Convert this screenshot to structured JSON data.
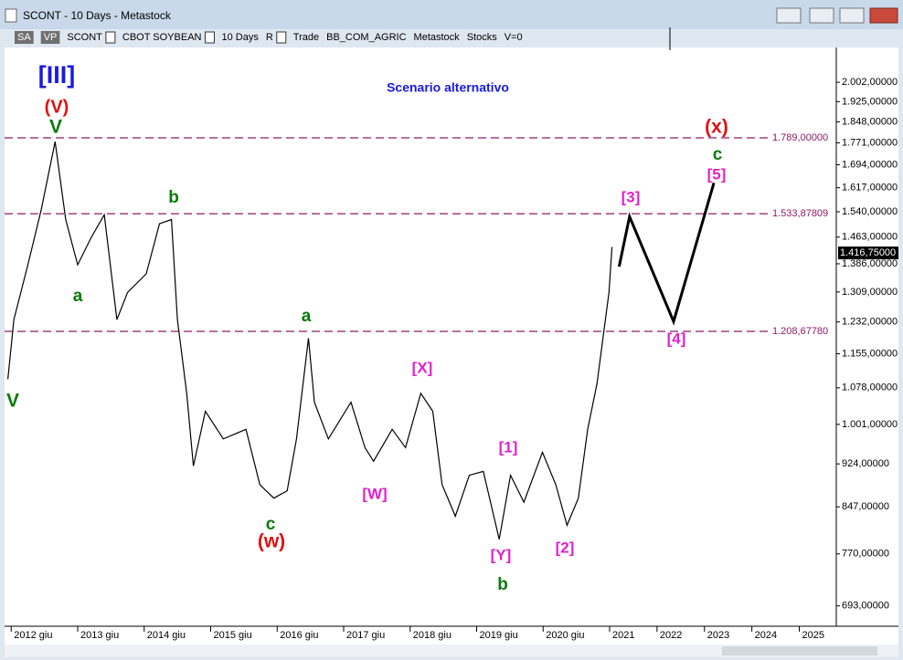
{
  "window": {
    "title": "SCONT - 10 Days - Metastock"
  },
  "toolbar": {
    "items": [
      "SA",
      "VP",
      "SCONT",
      "CBOT SOYBEAN",
      "10 Days",
      "R",
      "Trade",
      "BB_COM_AGRIC",
      "Metastock",
      "Stocks",
      "V=0"
    ]
  },
  "chart_data": {
    "type": "line",
    "log_scale": true,
    "color": "#000000",
    "x": [
      2011.95,
      2012.04,
      2012.25,
      2012.45,
      2012.66,
      2012.82,
      2013.0,
      2013.2,
      2013.4,
      2013.59,
      2013.75,
      2014.03,
      2014.23,
      2014.41,
      2014.5,
      2014.64,
      2014.74,
      2014.92,
      2015.19,
      2015.53,
      2015.74,
      2015.95,
      2016.15,
      2016.29,
      2016.47,
      2016.56,
      2016.77,
      2017.11,
      2017.32,
      2017.45,
      2017.73,
      2017.93,
      2018.16,
      2018.34,
      2018.48,
      2018.68,
      2018.89,
      2019.1,
      2019.34,
      2019.51,
      2019.71,
      2019.99,
      2020.19,
      2020.36,
      2020.53,
      2020.67,
      2020.81,
      2020.9,
      2020.99,
      2021.05
    ],
    "values": [
      1097,
      1238,
      1383,
      1545,
      1775,
      1516,
      1383,
      1461,
      1531,
      1238,
      1308,
      1358,
      1503,
      1516,
      1238,
      1066,
      920,
      1028,
      972,
      991,
      886,
      862,
      875,
      972,
      1192,
      1047,
      972,
      1047,
      955,
      929,
      991,
      955,
      1066,
      1028,
      886,
      831,
      903,
      910,
      793,
      903,
      855,
      946,
      886,
      816,
      862,
      991,
      1087,
      1192,
      1308,
      1434
    ],
    "projection": {
      "color": "#000000",
      "x": [
        2021.2,
        2021.42,
        2022.35,
        2023.2
      ],
      "values": [
        1378,
        1525,
        1233,
        1633
      ]
    },
    "hlines": [
      {
        "value": 1789,
        "label": "1.789,00000"
      },
      {
        "value": 1533.87809,
        "label": "1.533,87809"
      },
      {
        "value": 1208.6778,
        "label": "1.208,67780"
      }
    ],
    "hline_color": "#8b1a6b",
    "last_price": {
      "value": 1416.75,
      "label": "1.416,75000"
    },
    "ylim": [
      665,
      2109
    ],
    "yticks": [
      {
        "value": 693,
        "label": "693,00000"
      },
      {
        "value": 770,
        "label": "770,00000"
      },
      {
        "value": 847,
        "label": "847,00000"
      },
      {
        "value": 924,
        "label": "924,00000"
      },
      {
        "value": 1001,
        "label": "1.001,00000"
      },
      {
        "value": 1078,
        "label": "1.078,00000"
      },
      {
        "value": 1155,
        "label": "1.155,00000"
      },
      {
        "value": 1232,
        "label": "1.232,00000"
      },
      {
        "value": 1309,
        "label": "1.309,00000"
      },
      {
        "value": 1386,
        "label": "1.386,00000"
      },
      {
        "value": 1463,
        "label": "1.463,00000"
      },
      {
        "value": 1540,
        "label": "1.540,00000"
      },
      {
        "value": 1617,
        "label": "1.617,00000"
      },
      {
        "value": 1694,
        "label": "1.694,00000"
      },
      {
        "value": 1771,
        "label": "1.771,00000"
      },
      {
        "value": 1848,
        "label": "1.848,00000"
      },
      {
        "value": 1925,
        "label": "1.925,00000"
      },
      {
        "value": 2002,
        "label": "2.002,00000"
      }
    ],
    "xlim": [
      2011.9,
      2025.78
    ],
    "xticks": [
      {
        "value": 2012,
        "label": "2012 giu"
      },
      {
        "value": 2013,
        "label": "2013 giu"
      },
      {
        "value": 2014,
        "label": "2014 giu"
      },
      {
        "value": 2015,
        "label": "2015 giu"
      },
      {
        "value": 2016,
        "label": "2016 giu"
      },
      {
        "value": 2017,
        "label": "2017 giu"
      },
      {
        "value": 2018,
        "label": "2018 giu"
      },
      {
        "value": 2019,
        "label": "2019 giu"
      },
      {
        "value": 2020,
        "label": "2020 giu"
      },
      2021,
      2022,
      2023,
      2024,
      2025
    ],
    "annotations": [
      {
        "text": "Scenario alternativo",
        "color": "#1a1adf"
      },
      {
        "text": "[III]",
        "color": "#1a1adf"
      },
      {
        "text": "(V)",
        "color": "#e01010"
      },
      {
        "text": "V",
        "color": "#0a7a0a"
      },
      {
        "text": "b",
        "color": "#0a7a0a"
      },
      {
        "text": "a",
        "color": "#0a7a0a"
      },
      {
        "text": "V",
        "color": "#0a7a0a"
      },
      {
        "text": "a",
        "color": "#0a7a0a"
      },
      {
        "text": "c",
        "color": "#0a7a0a"
      },
      {
        "text": "(w)",
        "color": "#e01010"
      },
      {
        "text": "[X]",
        "color": "#e020d0"
      },
      {
        "text": "[W]",
        "color": "#e020d0"
      },
      {
        "text": "[1]",
        "color": "#e020d0"
      },
      {
        "text": "[Y]",
        "color": "#e020d0"
      },
      {
        "text": "b",
        "color": "#0a7a0a"
      },
      {
        "text": "[2]",
        "color": "#e020d0"
      },
      {
        "text": "[3]",
        "color": "#e020d0"
      },
      {
        "text": "[4]",
        "color": "#e020d0"
      },
      {
        "text": "(x)",
        "color": "#e01010"
      },
      {
        "text": "c",
        "color": "#0a7a0a"
      },
      {
        "text": "[5]",
        "color": "#e020d0"
      }
    ]
  }
}
